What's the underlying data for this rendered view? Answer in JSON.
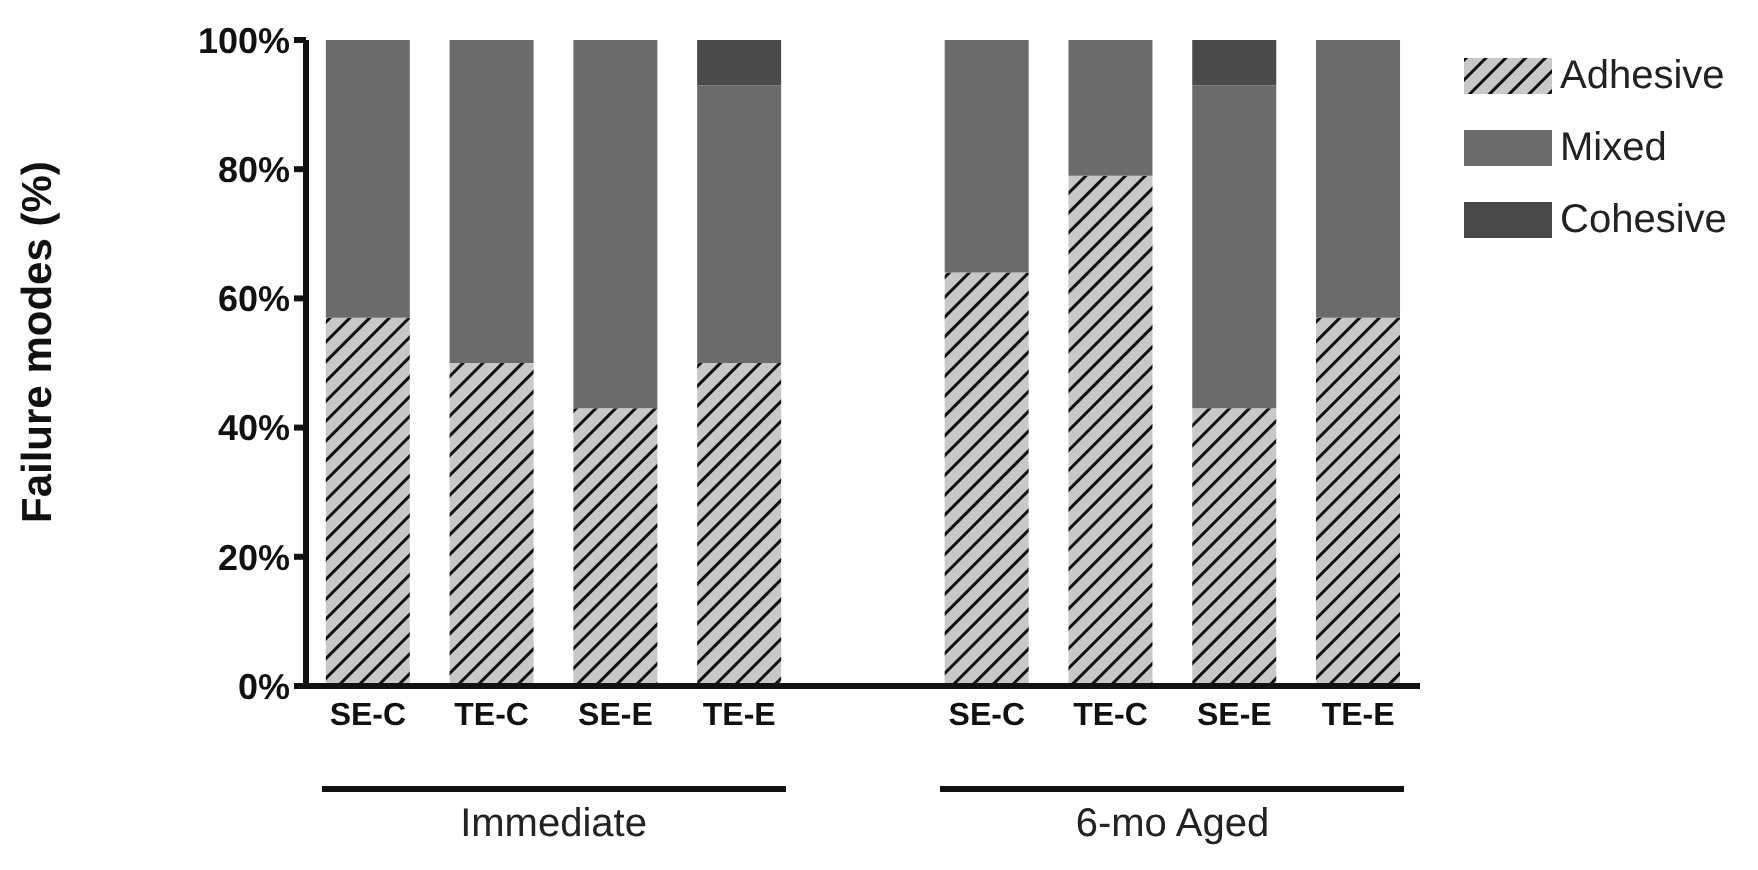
{
  "chart_data": {
    "type": "bar",
    "stacked": true,
    "ylabel": "Failure modes (%)",
    "categories": [
      "SE-C",
      "TE-C",
      "SE-E",
      "TE-E",
      null,
      "SE-C",
      "TE-C",
      "SE-E",
      "TE-E"
    ],
    "series": [
      {
        "name": "Adhesive",
        "color": "#c8c8c8",
        "values": [
          57,
          50,
          43,
          50,
          null,
          64,
          79,
          43,
          57
        ]
      },
      {
        "name": "Mixed",
        "color": "#6b6b6b",
        "values": [
          43,
          50,
          57,
          43,
          null,
          36,
          21,
          50,
          43
        ]
      },
      {
        "name": "Cohesive",
        "color": "#4a4a4a",
        "values": [
          0,
          0,
          0,
          7,
          null,
          0,
          0,
          7,
          0
        ]
      }
    ],
    "ylim": [
      0,
      100
    ],
    "yticks": [
      {
        "value": 0,
        "label": "0%"
      },
      {
        "value": 20,
        "label": "20%"
      },
      {
        "value": 40,
        "label": "40%"
      },
      {
        "value": 60,
        "label": "60%"
      },
      {
        "value": 80,
        "label": "80%"
      },
      {
        "value": 100,
        "label": "100%"
      }
    ],
    "annotations": [
      "Immediate",
      "6-mo Aged"
    ],
    "legend": "top right",
    "grid": false
  }
}
